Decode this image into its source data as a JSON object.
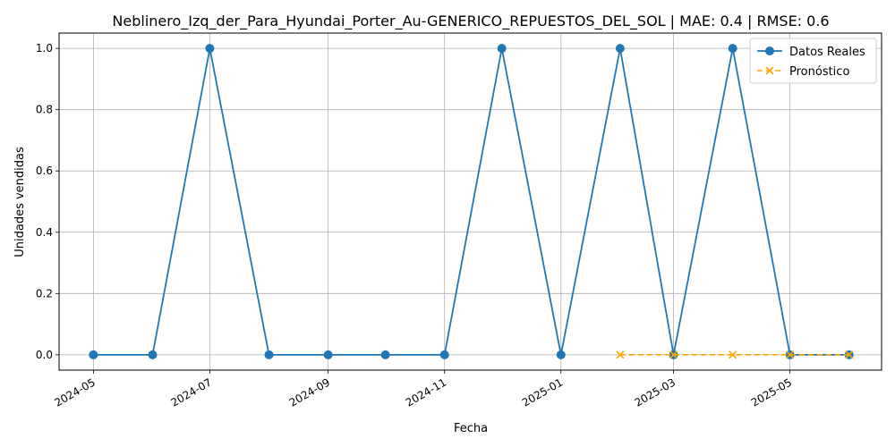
{
  "chart_data": {
    "type": "line",
    "title": "Neblinero_Izq_der_Para_Hyundai_Porter_Au-GENERICO_REPUESTOS_DEL_SOL | MAE: 0.4 | RMSE: 0.6",
    "xlabel": "Fecha",
    "ylabel": "Unidades vendidas",
    "xlim": [
      "2024-04-13",
      "2025-06-18"
    ],
    "ylim": [
      -0.05,
      1.05
    ],
    "x_ticks": [
      "2024-05",
      "2024-07",
      "2024-09",
      "2024-11",
      "2025-01",
      "2025-03",
      "2025-05"
    ],
    "y_ticks": [
      "0.0",
      "0.2",
      "0.4",
      "0.6",
      "0.8",
      "1.0"
    ],
    "grid": true,
    "legend_position": "top-right",
    "series": [
      {
        "name": "Datos Reales",
        "color": "#1f77b4",
        "style": "solid",
        "marker": "circle",
        "x": [
          "2024-05-01",
          "2024-06-01",
          "2024-07-01",
          "2024-08-01",
          "2024-09-01",
          "2024-10-01",
          "2024-11-01",
          "2024-12-01",
          "2025-01-01",
          "2025-02-01",
          "2025-03-01",
          "2025-04-01",
          "2025-05-01",
          "2025-06-01"
        ],
        "values": [
          0,
          0,
          1,
          0,
          0,
          0,
          0,
          1,
          0,
          1,
          0,
          1,
          0,
          0
        ]
      },
      {
        "name": "Pronóstico",
        "color": "#ffa500",
        "style": "dashed",
        "marker": "x",
        "x": [
          "2025-02-01",
          "2025-03-01",
          "2025-04-01",
          "2025-05-01",
          "2025-06-01"
        ],
        "values": [
          0,
          0,
          0,
          0,
          0
        ]
      }
    ]
  }
}
